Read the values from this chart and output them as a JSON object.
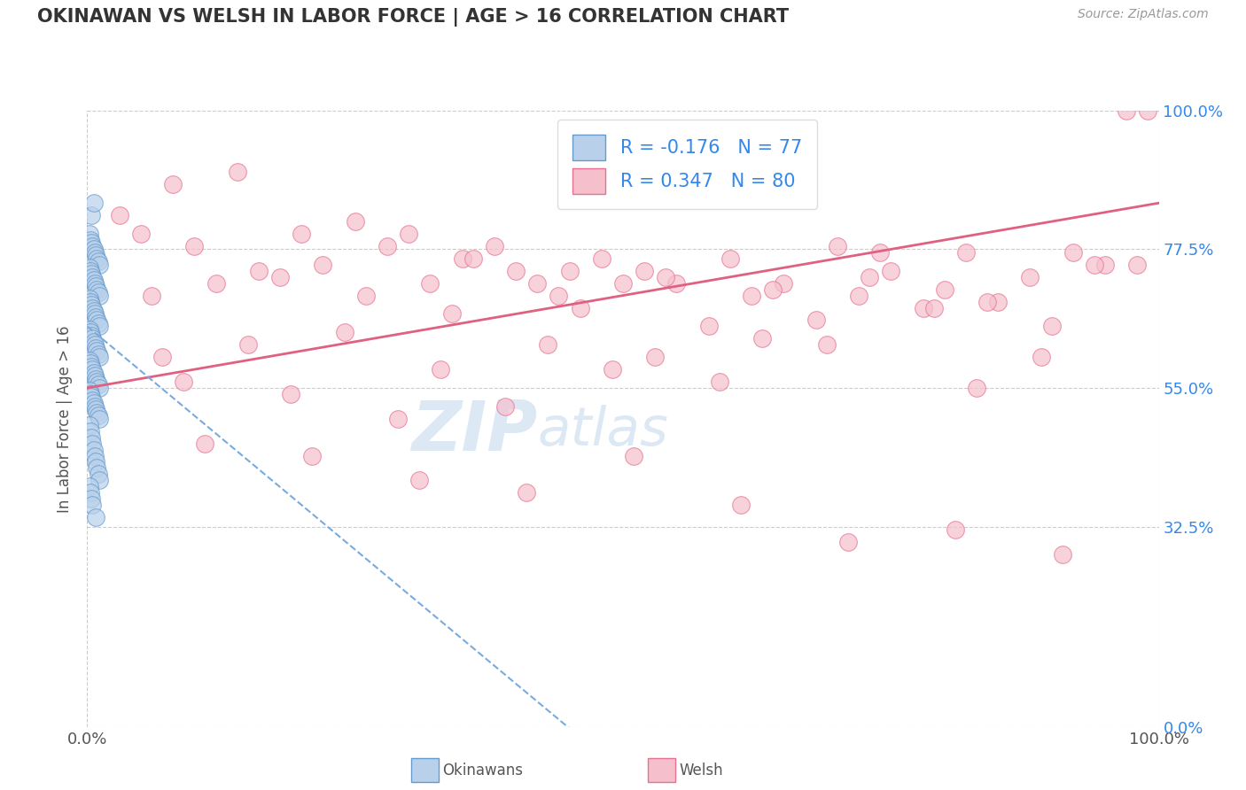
{
  "title": "OKINAWAN VS WELSH IN LABOR FORCE | AGE > 16 CORRELATION CHART",
  "source_text": "Source: ZipAtlas.com",
  "ylabel": "In Labor Force | Age > 16",
  "xlim": [
    0.0,
    100.0
  ],
  "ylim": [
    0.0,
    100.0
  ],
  "yticks": [
    0.0,
    32.5,
    55.0,
    77.5,
    100.0
  ],
  "xticks": [
    0.0,
    100.0
  ],
  "xtick_labels": [
    "0.0%",
    "100.0%"
  ],
  "ytick_labels": [
    "0.0%",
    "32.5%",
    "55.0%",
    "77.5%",
    "100.0%"
  ],
  "blue_R": -0.176,
  "blue_N": 77,
  "pink_R": 0.347,
  "pink_N": 80,
  "legend_label_blue": "Okinawans",
  "legend_label_pink": "Welsh",
  "blue_fill_color": "#b8d0ea",
  "pink_fill_color": "#f5c0cc",
  "blue_edge_color": "#6699cc",
  "pink_edge_color": "#e87090",
  "blue_line_color": "#7aabdd",
  "pink_line_color": "#e06080",
  "title_color": "#333333",
  "axis_color": "#555555",
  "grid_color": "#cccccc",
  "watermark_color": "#dde8f5",
  "blue_scatter_x": [
    0.2,
    0.3,
    0.4,
    0.5,
    0.6,
    0.7,
    0.8,
    0.9,
    1.0,
    1.1,
    0.2,
    0.3,
    0.4,
    0.5,
    0.6,
    0.7,
    0.8,
    0.9,
    1.0,
    1.1,
    0.2,
    0.3,
    0.4,
    0.5,
    0.6,
    0.7,
    0.8,
    0.9,
    1.0,
    1.1,
    0.2,
    0.3,
    0.4,
    0.5,
    0.6,
    0.7,
    0.8,
    0.9,
    1.0,
    1.1,
    0.2,
    0.3,
    0.4,
    0.5,
    0.6,
    0.7,
    0.8,
    0.9,
    1.0,
    1.1,
    0.2,
    0.3,
    0.4,
    0.5,
    0.6,
    0.7,
    0.8,
    0.9,
    1.0,
    1.1,
    0.2,
    0.3,
    0.4,
    0.5,
    0.6,
    0.7,
    0.8,
    0.9,
    1.0,
    1.1,
    0.2,
    0.3,
    0.4,
    0.5,
    0.8,
    0.4,
    0.6
  ],
  "blue_scatter_y": [
    80.0,
    79.0,
    78.5,
    78.0,
    77.5,
    77.0,
    76.5,
    76.0,
    75.5,
    75.0,
    74.5,
    74.0,
    73.5,
    73.0,
    72.5,
    72.0,
    71.5,
    71.0,
    70.5,
    70.0,
    69.5,
    69.0,
    68.5,
    68.0,
    67.5,
    67.0,
    66.5,
    66.0,
    65.5,
    65.0,
    64.5,
    64.0,
    63.5,
    63.0,
    62.5,
    62.0,
    61.5,
    61.0,
    60.5,
    60.0,
    59.5,
    59.0,
    58.5,
    58.0,
    57.5,
    57.0,
    56.5,
    56.0,
    55.5,
    55.0,
    54.5,
    54.0,
    53.5,
    53.0,
    52.5,
    52.0,
    51.5,
    51.0,
    50.5,
    50.0,
    49.0,
    48.0,
    47.0,
    46.0,
    45.0,
    44.0,
    43.0,
    42.0,
    41.0,
    40.0,
    39.0,
    38.0,
    37.0,
    36.0,
    34.0,
    83.0,
    85.0
  ],
  "pink_scatter_x": [
    3.0,
    8.0,
    14.0,
    10.0,
    20.0,
    25.0,
    22.0,
    28.0,
    30.0,
    18.0,
    35.0,
    38.0,
    32.0,
    40.0,
    36.0,
    42.0,
    45.0,
    48.0,
    44.0,
    50.0,
    52.0,
    55.0,
    58.0,
    60.0,
    62.0,
    65.0,
    68.0,
    70.0,
    72.0,
    75.0,
    78.0,
    80.0,
    82.0,
    85.0,
    88.0,
    90.0,
    95.0,
    97.0,
    99.0,
    5.0,
    12.0,
    16.0,
    26.0,
    34.0,
    46.0,
    54.0,
    64.0,
    74.0,
    84.0,
    94.0,
    7.0,
    15.0,
    24.0,
    33.0,
    43.0,
    53.0,
    63.0,
    73.0,
    83.0,
    92.0,
    9.0,
    19.0,
    29.0,
    39.0,
    49.0,
    59.0,
    69.0,
    79.0,
    89.0,
    98.0,
    11.0,
    21.0,
    31.0,
    41.0,
    51.0,
    61.0,
    71.0,
    81.0,
    91.0,
    6.0
  ],
  "pink_scatter_y": [
    83.0,
    88.0,
    90.0,
    78.0,
    80.0,
    82.0,
    75.0,
    78.0,
    80.0,
    73.0,
    76.0,
    78.0,
    72.0,
    74.0,
    76.0,
    72.0,
    74.0,
    76.0,
    70.0,
    72.0,
    74.0,
    72.0,
    65.0,
    76.0,
    70.0,
    72.0,
    66.0,
    78.0,
    70.0,
    74.0,
    68.0,
    71.0,
    77.0,
    69.0,
    73.0,
    65.0,
    75.0,
    100.0,
    100.0,
    80.0,
    72.0,
    74.0,
    70.0,
    67.0,
    68.0,
    73.0,
    71.0,
    77.0,
    69.0,
    75.0,
    60.0,
    62.0,
    64.0,
    58.0,
    62.0,
    60.0,
    63.0,
    73.0,
    55.0,
    77.0,
    56.0,
    54.0,
    50.0,
    52.0,
    58.0,
    56.0,
    62.0,
    68.0,
    60.0,
    75.0,
    46.0,
    44.0,
    40.0,
    38.0,
    44.0,
    36.0,
    30.0,
    32.0,
    28.0,
    70.0
  ]
}
